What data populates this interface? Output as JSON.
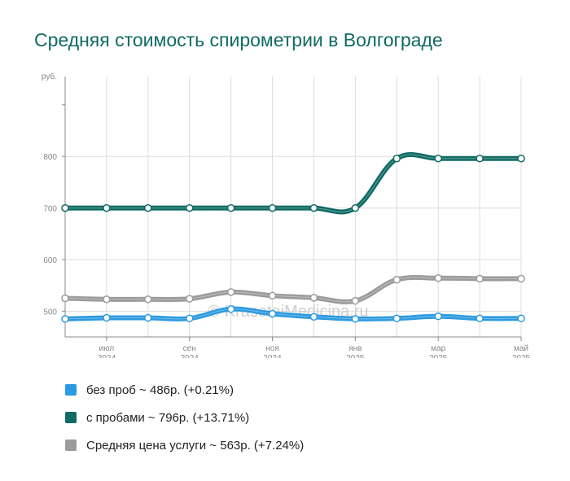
{
  "title": "Средняя стоимость спирометрии в Волгограде",
  "watermark": "© KrasotaiMedicina.ru",
  "chart_data": {
    "type": "line",
    "y_unit": "руб.",
    "ylim": [
      450,
      955
    ],
    "y_ticks": [
      {
        "value": 500,
        "label": "500"
      },
      {
        "value": 600,
        "label": "600"
      },
      {
        "value": 700,
        "label": "700"
      },
      {
        "value": 800,
        "label": "800"
      }
    ],
    "x_ticks": [
      {
        "index": 1,
        "month": "июл",
        "year": "2024"
      },
      {
        "index": 3,
        "month": "сен",
        "year": "2024"
      },
      {
        "index": 5,
        "month": "ноя",
        "year": "2024"
      },
      {
        "index": 7,
        "month": "янв",
        "year": "2025"
      },
      {
        "index": 9,
        "month": "мар",
        "year": "2025"
      },
      {
        "index": 11,
        "month": "май",
        "year": "2025"
      }
    ],
    "x": [
      "2024-06",
      "2024-07",
      "2024-08",
      "2024-09",
      "2024-10",
      "2024-11",
      "2024-12",
      "2025-01",
      "2025-02",
      "2025-03",
      "2025-04",
      "2025-05"
    ],
    "grid": true,
    "series": [
      {
        "name": "без проб",
        "color": "#2b9ae0",
        "values": [
          485,
          487,
          487,
          486,
          504,
          495,
          489,
          485,
          486,
          490,
          486,
          486
        ]
      },
      {
        "name": "с пробами",
        "color": "#0f6b64",
        "values": [
          700,
          700,
          700,
          700,
          700,
          700,
          700,
          700,
          796,
          796,
          796,
          796
        ]
      },
      {
        "name": "Средняя цена услуги",
        "color": "#9b9b9b",
        "values": [
          525,
          523,
          523,
          524,
          537,
          530,
          526,
          520,
          561,
          564,
          563,
          563
        ]
      }
    ]
  },
  "legend": [
    {
      "label": "без проб ~ 486р. (+0.21%)",
      "color": "#2b9ae0"
    },
    {
      "label": "с пробами ~ 796р. (+13.71%)",
      "color": "#0f6b64"
    },
    {
      "label": "Средняя цена услуги ~ 563р. (+7.24%)",
      "color": "#9b9b9b"
    }
  ]
}
